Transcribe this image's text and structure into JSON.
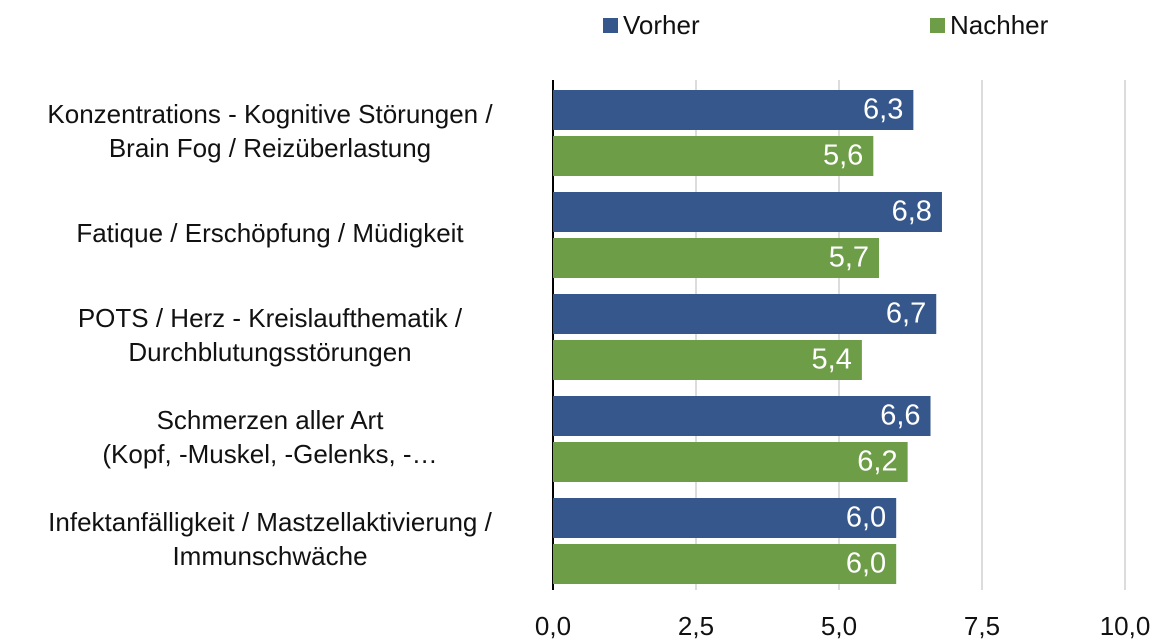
{
  "chart_data": {
    "type": "hbar",
    "categories": [
      [
        "Konzentrations - Kognitive Störungen /",
        "Brain Fog / Reizüberlastung"
      ],
      [
        "Fatique / Erschöpfung / Müdigkeit"
      ],
      [
        "POTS / Herz - Kreislaufthematik /",
        "Durchblutungsstörungen"
      ],
      [
        "Schmerzen aller Art",
        "(Kopf, -Muskel, -Gelenks, -…"
      ],
      [
        "Infektanfälligkeit / Mastzellaktivierung /",
        "Immunschwäche"
      ]
    ],
    "series": [
      {
        "name": "Vorher",
        "color": "#35578c",
        "values": [
          6.3,
          6.8,
          6.7,
          6.6,
          6.0
        ],
        "value_labels": [
          "6,3",
          "6,8",
          "6,7",
          "6,6",
          "6,0"
        ]
      },
      {
        "name": "Nachher",
        "color": "#6e9d48",
        "values": [
          5.6,
          5.7,
          5.4,
          6.2,
          6.0
        ],
        "value_labels": [
          "5,6",
          "5,7",
          "5,4",
          "6,2",
          "6,0"
        ]
      }
    ],
    "xlim": [
      0,
      10
    ],
    "xticks": [
      {
        "value": 0,
        "label": "0,0"
      },
      {
        "value": 2.5,
        "label": "2,5"
      },
      {
        "value": 5,
        "label": "5,0"
      },
      {
        "value": 7.5,
        "label": "7,5"
      },
      {
        "value": 10,
        "label": "10,0"
      }
    ],
    "grid": true,
    "legend": "top"
  }
}
